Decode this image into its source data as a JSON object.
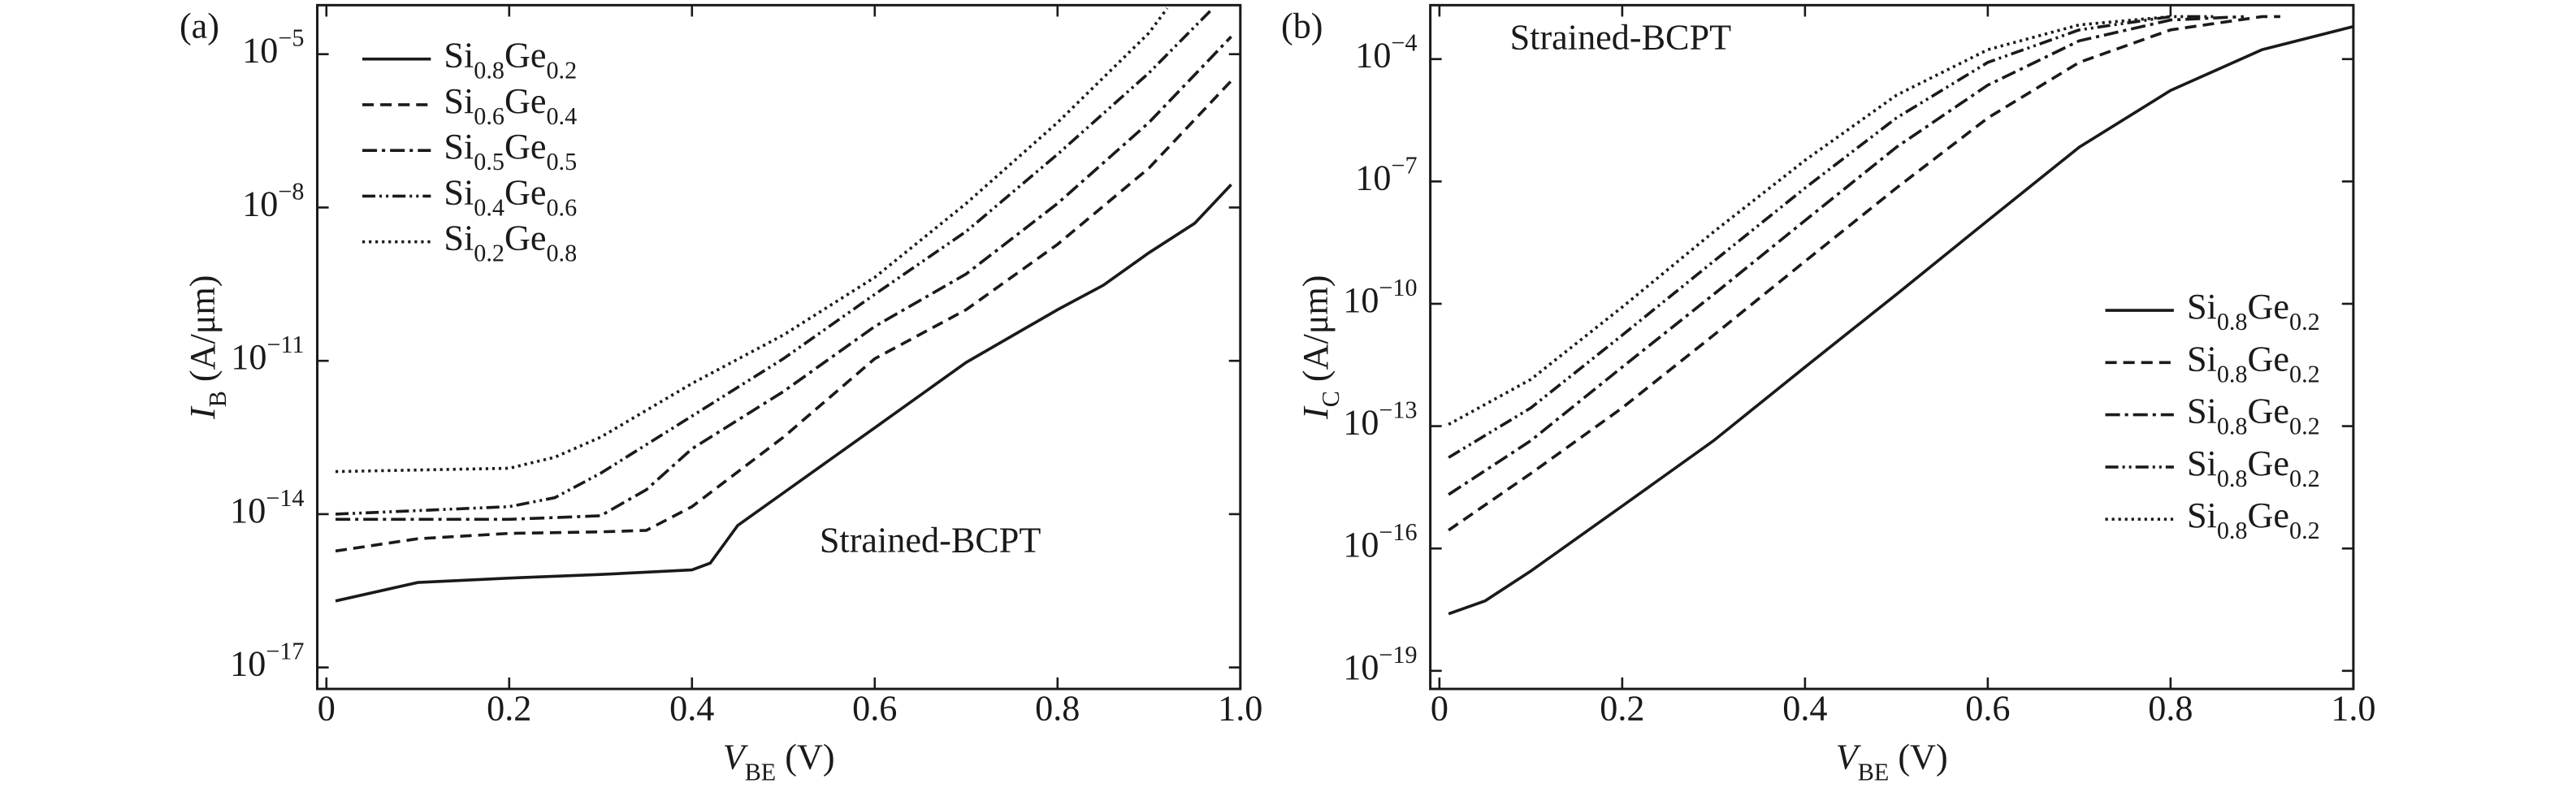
{
  "chart_data": [
    {
      "type": "line",
      "panel_label": "(a)",
      "annotation": "Strained-BCPT",
      "xlabel": "VBE (V)",
      "ylabel": "IB (A/μm)",
      "log_y": true,
      "legend": "upper left",
      "xlim": [
        -0.01,
        1.0
      ],
      "xticks": [
        0,
        0.2,
        0.4,
        0.6,
        0.8,
        {
          "value": 1,
          "label": "1.0"
        }
      ],
      "ylim": [
        3.8e-18,
        9.1e-05
      ],
      "yticks": [
        {
          "value": 1e-17,
          "label": "10−17"
        },
        {
          "value": 1e-14,
          "label": "10−14"
        },
        {
          "value": 1e-11,
          "label": "10−11"
        },
        {
          "value": 1e-08,
          "label": "10−8"
        },
        {
          "value": 1e-05,
          "label": "10−5"
        }
      ],
      "series": [
        {
          "name": "Si0.8Ge0.2",
          "color": "#1a1a1a",
          "dash": "solid",
          "x": [
            0.01,
            0.1,
            0.2,
            0.3,
            0.4,
            0.42,
            0.45,
            0.5,
            0.6,
            0.7,
            0.8,
            0.85,
            0.9,
            0.95,
            0.99
          ],
          "values": [
            2e-16,
            4.6e-16,
            5.6e-16,
            6.6e-16,
            8.1e-16,
            1.1e-15,
            6e-15,
            2.6e-14,
            4.9e-13,
            9.3e-12,
            1e-10,
            3e-10,
            1.3e-09,
            4.9e-09,
            2.8e-08
          ]
        },
        {
          "name": "Si0.6Ge0.4",
          "color": "#1a1a1a",
          "dash": "dashed",
          "x": [
            0.01,
            0.1,
            0.2,
            0.3,
            0.35,
            0.4,
            0.5,
            0.6,
            0.7,
            0.8,
            0.9,
            0.99
          ],
          "values": [
            1.9e-15,
            3.3e-15,
            4.2e-15,
            4.5e-15,
            4.8e-15,
            1.4e-14,
            3.2e-13,
            1.1e-11,
            1e-10,
            1.9e-09,
            5.9e-08,
            3e-06
          ]
        },
        {
          "name": "Si0.5Ge0.5",
          "color": "#1a1a1a",
          "dash": "dashdot",
          "x": [
            0.01,
            0.1,
            0.2,
            0.3,
            0.35,
            0.4,
            0.5,
            0.6,
            0.7,
            0.8,
            0.9,
            0.99
          ],
          "values": [
            7.9e-15,
            7.9e-15,
            7.9e-15,
            9.3e-15,
            3e-14,
            1.9e-13,
            2.5e-12,
            4.7e-11,
            5e-10,
            1.2e-08,
            4.6e-07,
            2.2e-05
          ]
        },
        {
          "name": "Si0.4Ge0.6",
          "color": "#1a1a1a",
          "dash": "dashdotdot",
          "x": [
            0.01,
            0.2,
            0.25,
            0.3,
            0.4,
            0.5,
            0.6,
            0.7,
            0.8,
            0.9,
            0.97
          ],
          "values": [
            1e-14,
            1.4e-14,
            2.1e-14,
            6.3e-14,
            8.3e-13,
            1.1e-11,
            2e-10,
            3.4e-09,
            1.1e-07,
            4.3e-06,
            7.9e-05
          ]
        },
        {
          "name": "Si0.2Ge0.8",
          "color": "#1a1a1a",
          "dash": "dotted",
          "x": [
            0.01,
            0.2,
            0.25,
            0.3,
            0.4,
            0.5,
            0.6,
            0.7,
            0.8,
            0.9,
            0.92
          ],
          "values": [
            6.8e-14,
            7.9e-14,
            1.3e-13,
            3.2e-13,
            3.6e-12,
            3.2e-11,
            4.3e-10,
            1.2e-08,
            4.6e-07,
            2.6e-05,
            7.9e-05
          ]
        }
      ]
    },
    {
      "type": "line",
      "panel_label": "(b)",
      "annotation": "Strained-BCPT",
      "xlabel": "VBE (V)",
      "ylabel": "IC (A/μm)",
      "log_y": true,
      "legend": "lower right",
      "xlim": [
        -0.01,
        1.0
      ],
      "xticks": [
        0,
        0.2,
        0.4,
        0.6,
        0.8,
        {
          "value": 1,
          "label": "1.0"
        }
      ],
      "ylim": [
        3.6e-20,
        0.0021
      ],
      "yticks": [
        {
          "value": 1e-19,
          "label": "10−19"
        },
        {
          "value": 1e-16,
          "label": "10−16"
        },
        {
          "value": 1e-13,
          "label": "10−13"
        },
        {
          "value": 1e-10,
          "label": "10−10"
        },
        {
          "value": 1e-07,
          "label": "10−7"
        },
        {
          "value": 0.0001,
          "label": "10−4"
        }
      ],
      "series": [
        {
          "name": "Si0.8Ge0.2",
          "color": "#1a1a1a",
          "dash": "solid",
          "x": [
            0.01,
            0.05,
            0.1,
            0.2,
            0.3,
            0.4,
            0.5,
            0.6,
            0.7,
            0.8,
            0.9,
            1.0
          ],
          "values": [
            2.5e-18,
            5.2e-18,
            2.8e-17,
            1.1e-15,
            4.4e-14,
            2.8e-12,
            1.7e-10,
            1.1e-08,
            6.9e-07,
            1.7e-05,
            0.00017,
            0.00063
          ]
        },
        {
          "name": "Si0.8Ge0.2",
          "color": "#1a1a1a",
          "dash": "dashed",
          "x": [
            0.01,
            0.1,
            0.2,
            0.3,
            0.4,
            0.5,
            0.6,
            0.7,
            0.8,
            0.9,
            0.92
          ],
          "values": [
            2.8e-16,
            6.9e-15,
            2.8e-13,
            1.7e-11,
            1.1e-09,
            6.9e-08,
            3.6e-06,
            8.3e-05,
            0.00052,
            0.0011,
            0.0011
          ]
        },
        {
          "name": "Si0.8Ge0.2",
          "color": "#1a1a1a",
          "dash": "dashdot",
          "x": [
            0.01,
            0.1,
            0.2,
            0.3,
            0.4,
            0.5,
            0.6,
            0.7,
            0.8,
            0.88
          ],
          "values": [
            2.1e-15,
            4.4e-14,
            2.8e-12,
            1.7e-10,
            1.1e-08,
            6.9e-07,
            2.3e-05,
            0.00028,
            0.00091,
            0.0011
          ]
        },
        {
          "name": "Si0.8Ge0.2",
          "color": "#1a1a1a",
          "dash": "dashdotdot",
          "x": [
            0.01,
            0.1,
            0.2,
            0.3,
            0.4,
            0.5,
            0.6,
            0.7,
            0.8,
            0.85
          ],
          "values": [
            1.7e-14,
            2.8e-13,
            1.7e-11,
            1.1e-09,
            6.9e-08,
            3.6e-06,
            8.3e-05,
            0.00052,
            0.0011,
            0.0011
          ]
        },
        {
          "name": "Si0.8Ge0.2",
          "color": "#1a1a1a",
          "dash": "dotted",
          "x": [
            0.01,
            0.1,
            0.2,
            0.3,
            0.4,
            0.5,
            0.6,
            0.7,
            0.8
          ],
          "values": [
            1.1e-13,
            1.4e-12,
            8.3e-11,
            5.8e-09,
            3.3e-07,
            1.3e-05,
            0.00017,
            0.00069,
            0.0011
          ]
        }
      ]
    }
  ]
}
